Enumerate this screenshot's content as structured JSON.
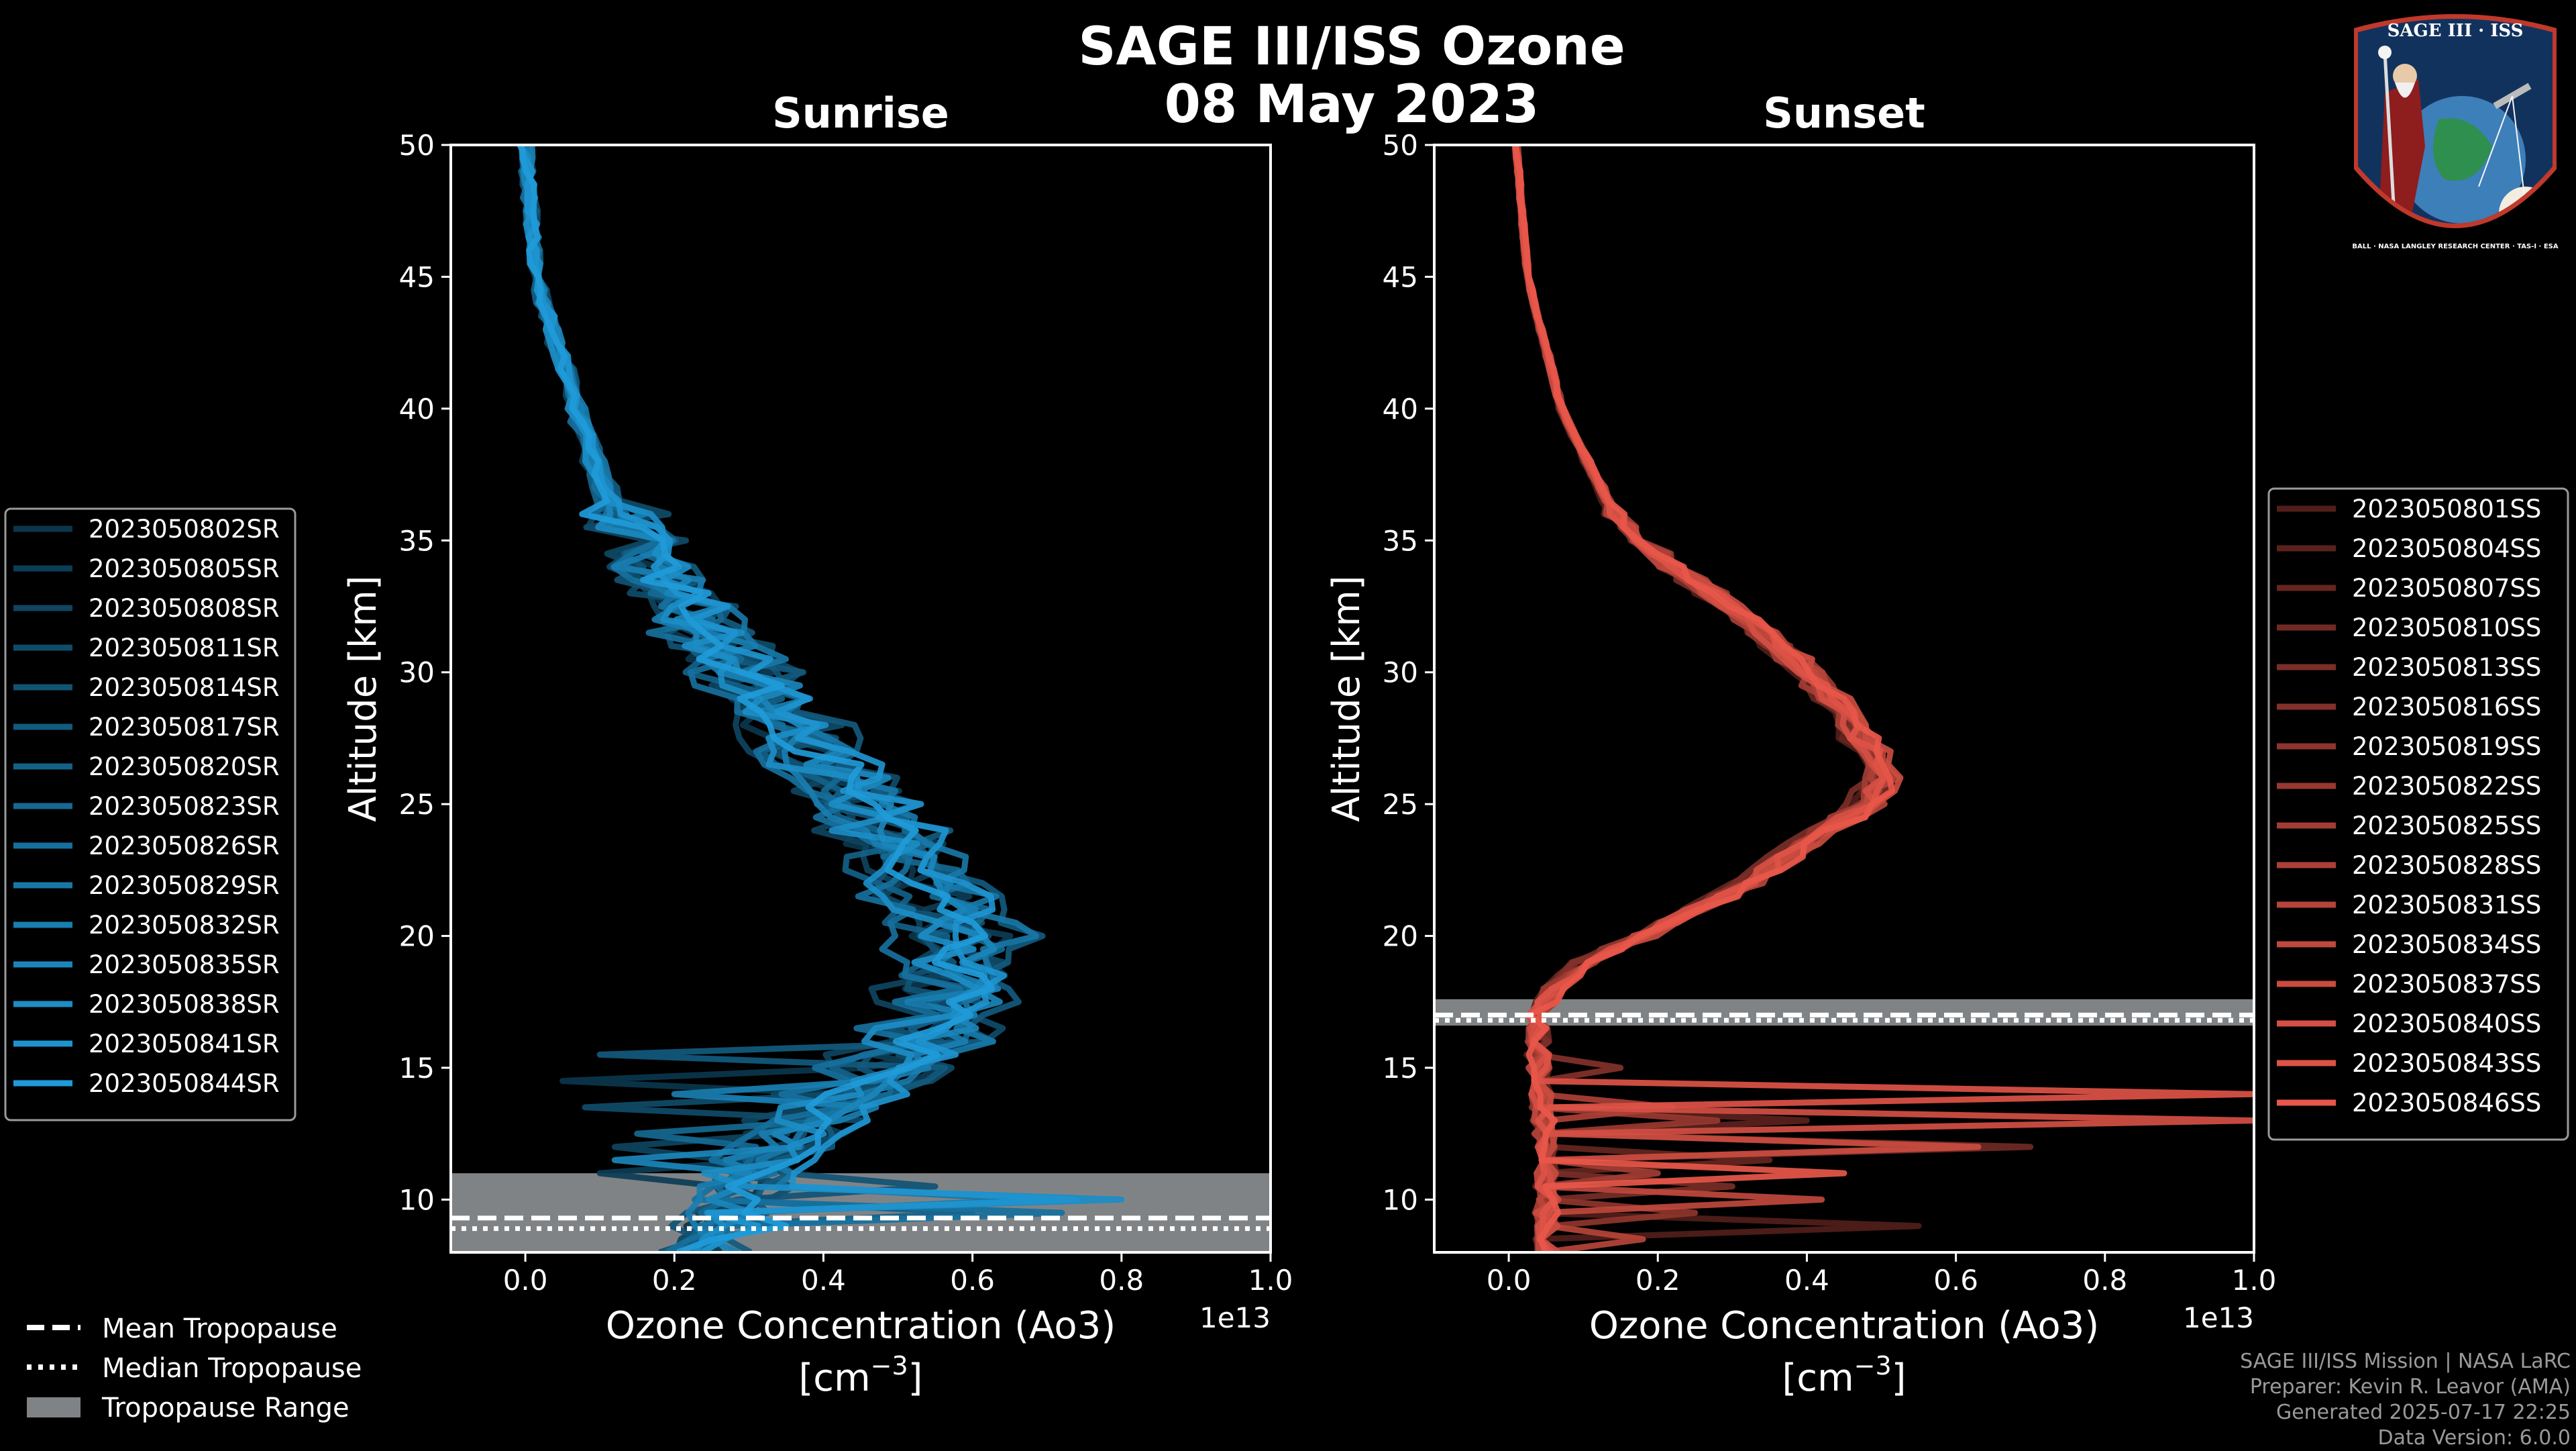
{
  "title_line1": "SAGE III/ISS Ozone",
  "title_line2": "08 May 2023",
  "logo": {
    "top_text": "SAGE III · ISS",
    "ring_text": "BALL · NASA LANGLEY RESEARCH CENTER · TAS-I · ESA"
  },
  "footer": [
    "SAGE III/ISS Mission | NASA LaRC",
    "Preparer: Kevin R. Leavor (AMA)",
    "Generated 2025-07-17 22:25",
    "Data Version: 6.0.0"
  ],
  "colors": {
    "sunrise": "#1f9bd9",
    "sunset": "#e8574a",
    "tropo_band": "#808386"
  },
  "tropopause_legend": [
    "Mean Tropopause",
    "Median Tropopause",
    "Tropopause Range"
  ],
  "chart_data": [
    {
      "type": "line",
      "panel": "sunrise",
      "title": "Sunrise",
      "xlabel": "Ozone Concentration (Ao3)",
      "xunit": "[cm",
      "xunit_sup": "−3",
      "xunit_close": "]",
      "xscale_label": "1e13",
      "ylabel": "Altitude [km]",
      "xlim": [
        -0.1,
        1.0
      ],
      "ylim": [
        8,
        50
      ],
      "xticks": [
        0.0,
        0.2,
        0.4,
        0.6,
        0.8,
        1.0
      ],
      "xtick_labels": [
        "0.0",
        "0.2",
        "0.4",
        "0.6",
        "0.8",
        "1.0"
      ],
      "yticks": [
        10,
        15,
        20,
        25,
        30,
        35,
        40,
        45,
        50
      ],
      "ytick_labels": [
        "10",
        "15",
        "20",
        "25",
        "30",
        "35",
        "40",
        "45",
        "50"
      ],
      "tropopause": {
        "mean": 9.3,
        "median": 8.9,
        "range": [
          8.0,
          11.0
        ]
      },
      "base_profile": [
        [
          50,
          0.0
        ],
        [
          45,
          0.015
        ],
        [
          40,
          0.07
        ],
        [
          36,
          0.12
        ],
        [
          33,
          0.2
        ],
        [
          30,
          0.3
        ],
        [
          28,
          0.37
        ],
        [
          26,
          0.43
        ],
        [
          24,
          0.5
        ],
        [
          22,
          0.55
        ],
        [
          20,
          0.6
        ],
        [
          18,
          0.6
        ],
        [
          16,
          0.55
        ],
        [
          14,
          0.45
        ],
        [
          12,
          0.35
        ],
        [
          10,
          0.28
        ],
        [
          8,
          0.25
        ]
      ],
      "series": [
        {
          "name": "2023050802SR",
          "scale": 0.92,
          "noise": 0.05,
          "spike_alt": 14.5,
          "spike_x": 0.05
        },
        {
          "name": "2023050805SR",
          "scale": 1.0,
          "noise": 0.06,
          "spike_alt": 11.0,
          "spike_x": 0.1
        },
        {
          "name": "2023050808SR",
          "scale": 0.85,
          "noise": 0.05,
          "spike_alt": 12.0,
          "spike_x": 0.12
        },
        {
          "name": "2023050811SR",
          "scale": 1.05,
          "noise": 0.07,
          "spike_alt": 13.5,
          "spike_x": 0.08
        },
        {
          "name": "2023050814SR",
          "scale": 0.95,
          "noise": 0.06,
          "spike_alt": 10.5,
          "spike_x": 0.55
        },
        {
          "name": "2023050817SR",
          "scale": 1.08,
          "noise": 0.05,
          "spike_alt": 15.5,
          "spike_x": 0.1
        },
        {
          "name": "2023050820SR",
          "scale": 0.9,
          "noise": 0.06,
          "spike_alt": 9.5,
          "spike_x": 0.6
        },
        {
          "name": "2023050823SR",
          "scale": 1.0,
          "noise": 0.05,
          "spike_alt": 12.5,
          "spike_x": 0.15
        },
        {
          "name": "2023050826SR",
          "scale": 0.88,
          "noise": 0.06,
          "spike_alt": 9.5,
          "spike_x": 0.72
        },
        {
          "name": "2023050829SR",
          "scale": 1.06,
          "noise": 0.05,
          "spike_alt": 10.0,
          "spike_x": 0.68
        },
        {
          "name": "2023050832SR",
          "scale": 0.97,
          "noise": 0.06,
          "spike_alt": 14.0,
          "spike_x": 0.2
        },
        {
          "name": "2023050835SR",
          "scale": 1.02,
          "noise": 0.05,
          "spike_alt": 11.5,
          "spike_x": 0.12
        },
        {
          "name": "2023050838SR",
          "scale": 0.93,
          "noise": 0.06,
          "spike_alt": 9.8,
          "spike_x": 0.8
        },
        {
          "name": "2023050841SR",
          "scale": 1.04,
          "noise": 0.05,
          "spike_alt": 10.2,
          "spike_x": 0.74
        },
        {
          "name": "2023050844SR",
          "scale": 0.98,
          "noise": 0.05,
          "spike_alt": 9.0,
          "spike_x": 0.35
        }
      ]
    },
    {
      "type": "line",
      "panel": "sunset",
      "title": "Sunset",
      "xlabel": "Ozone Concentration (Ao3)",
      "xunit": "[cm",
      "xunit_sup": "−3",
      "xunit_close": "]",
      "xscale_label": "1e13",
      "ylabel": "Altitude [km]",
      "xlim": [
        -0.1,
        1.0
      ],
      "ylim": [
        8,
        50
      ],
      "xticks": [
        0.0,
        0.2,
        0.4,
        0.6,
        0.8,
        1.0
      ],
      "xtick_labels": [
        "0.0",
        "0.2",
        "0.4",
        "0.6",
        "0.8",
        "1.0"
      ],
      "yticks": [
        10,
        15,
        20,
        25,
        30,
        35,
        40,
        45,
        50
      ],
      "ytick_labels": [
        "10",
        "15",
        "20",
        "25",
        "30",
        "35",
        "40",
        "45",
        "50"
      ],
      "tropopause": {
        "mean": 17.0,
        "median": 16.8,
        "range": [
          16.6,
          17.6
        ]
      },
      "base_profile": [
        [
          50,
          0.01
        ],
        [
          45,
          0.025
        ],
        [
          40,
          0.07
        ],
        [
          36,
          0.14
        ],
        [
          34,
          0.22
        ],
        [
          32,
          0.32
        ],
        [
          30,
          0.4
        ],
        [
          28,
          0.46
        ],
        [
          26,
          0.5
        ],
        [
          25,
          0.48
        ],
        [
          24,
          0.42
        ],
        [
          22,
          0.32
        ],
        [
          20,
          0.18
        ],
        [
          19,
          0.1
        ],
        [
          18,
          0.06
        ],
        [
          17,
          0.04
        ],
        [
          15,
          0.04
        ],
        [
          12,
          0.05
        ],
        [
          10,
          0.05
        ],
        [
          8,
          0.05
        ]
      ],
      "series": [
        {
          "name": "2023050801SS",
          "scale": 0.96,
          "noise": 0.015,
          "spike_alt": 9.0,
          "spike_x": 0.55
        },
        {
          "name": "2023050804SS",
          "scale": 1.0,
          "noise": 0.015,
          "spike_alt": 13.0,
          "spike_x": 0.4
        },
        {
          "name": "2023050807SS",
          "scale": 0.98,
          "noise": 0.015,
          "spike_alt": 11.5,
          "spike_x": 0.35
        },
        {
          "name": "2023050810SS",
          "scale": 1.02,
          "noise": 0.015,
          "spike_alt": 12.2,
          "spike_x": 0.7
        },
        {
          "name": "2023050813SS",
          "scale": 0.97,
          "noise": 0.015,
          "spike_alt": 10.5,
          "spike_x": 0.3
        },
        {
          "name": "2023050816SS",
          "scale": 1.01,
          "noise": 0.015,
          "spike_alt": 14.8,
          "spike_x": 0.15
        },
        {
          "name": "2023050819SS",
          "scale": 0.99,
          "noise": 0.015,
          "spike_alt": 9.6,
          "spike_x": 0.25
        },
        {
          "name": "2023050822SS",
          "scale": 1.03,
          "noise": 0.015,
          "spike_alt": 12.8,
          "spike_x": 0.28
        },
        {
          "name": "2023050825SS",
          "scale": 0.98,
          "noise": 0.015,
          "spike_alt": 11.0,
          "spike_x": 0.2
        },
        {
          "name": "2023050828SS",
          "scale": 1.0,
          "noise": 0.015,
          "spike_alt": 13.6,
          "spike_x": 0.22
        },
        {
          "name": "2023050831SS",
          "scale": 1.02,
          "noise": 0.015,
          "spike_alt": 8.6,
          "spike_x": 0.18
        },
        {
          "name": "2023050834SS",
          "scale": 0.99,
          "noise": 0.015,
          "spike_alt": 10.2,
          "spike_x": 0.42
        },
        {
          "name": "2023050837SS",
          "scale": 1.04,
          "noise": 0.015,
          "spike_alt": 12.1,
          "spike_x": 0.63
        },
        {
          "name": "2023050840SS",
          "scale": 1.0,
          "noise": 0.015,
          "spike_alt": 13.0,
          "spike_x": 1.0
        },
        {
          "name": "2023050843SS",
          "scale": 1.01,
          "noise": 0.015,
          "spike_alt": 14.1,
          "spike_x": 1.0
        },
        {
          "name": "2023050846SS",
          "scale": 1.03,
          "noise": 0.015,
          "spike_alt": 10.9,
          "spike_x": 0.45
        }
      ]
    }
  ]
}
